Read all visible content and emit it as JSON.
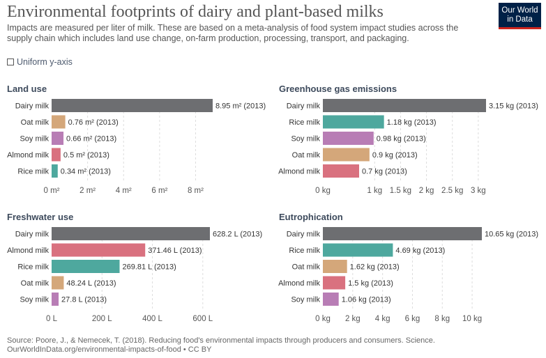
{
  "header": {
    "title": "Environmental footprints of dairy and plant-based milks",
    "subtitle": "Impacts are measured per liter of milk. These are based on a meta-analysis of food system impact studies across the supply chain which includes land use change, on-farm production, processing, transport, and packaging.",
    "logo_line1": "Our World",
    "logo_line2": "in Data",
    "logo_color": "#002147",
    "logo_accent": "#ce261e"
  },
  "controls": {
    "uniform_y_label": "Uniform y-axis",
    "uniform_y_checked": false
  },
  "footer": {
    "source": "Source: Poore, J., & Nemecek, T. (2018). Reducing food's environmental impacts through producers and consumers. Science.",
    "url": "OurWorldInData.org/environmental-impacts-of-food • CC BY"
  },
  "colors": {
    "Dairy milk": "#6d6e71",
    "Oat milk": "#d4a77a",
    "Soy milk": "#b87db5",
    "Almond milk": "#d9717f",
    "Rice milk": "#4ea89e"
  },
  "chart_data": [
    {
      "type": "bar",
      "title": "Land use",
      "categories": [
        "Dairy milk",
        "Oat milk",
        "Soy milk",
        "Almond milk",
        "Rice milk"
      ],
      "values": [
        8.95,
        0.76,
        0.66,
        0.5,
        0.34
      ],
      "labels": [
        "8.95 m² (2013)",
        "0.76 m² (2013)",
        "0.66 m² (2013)",
        "0.5 m² (2013)",
        "0.34 m² (2013)"
      ],
      "xlim": [
        0,
        8.95
      ],
      "ticks": [
        0,
        2,
        4,
        6,
        8
      ],
      "tick_labels": [
        "0 m²",
        "2 m²",
        "4 m²",
        "6 m²",
        "8 m²"
      ]
    },
    {
      "type": "bar",
      "title": "Greenhouse gas emissions",
      "categories": [
        "Dairy milk",
        "Rice milk",
        "Soy milk",
        "Oat milk",
        "Almond milk"
      ],
      "values": [
        3.15,
        1.18,
        0.98,
        0.9,
        0.7
      ],
      "labels": [
        "3.15 kg (2013)",
        "1.18 kg (2013)",
        "0.98 kg (2013)",
        "0.9 kg (2013)",
        "0.7 kg (2013)"
      ],
      "xlim": [
        0,
        3.15
      ],
      "ticks": [
        0,
        1,
        1.5,
        2,
        2.5,
        3
      ],
      "tick_labels": [
        "0 kg",
        "1 kg",
        "1.5 kg",
        "2 kg",
        "2.5 kg",
        "3 kg"
      ]
    },
    {
      "type": "bar",
      "title": "Freshwater use",
      "categories": [
        "Dairy milk",
        "Almond milk",
        "Rice milk",
        "Oat milk",
        "Soy milk"
      ],
      "values": [
        628.2,
        371.46,
        269.81,
        48.24,
        27.8
      ],
      "labels": [
        "628.2 L (2013)",
        "371.46 L (2013)",
        "269.81 L (2013)",
        "48.24 L (2013)",
        "27.8 L (2013)"
      ],
      "xlim": [
        0,
        628.2
      ],
      "ticks": [
        0,
        200,
        400,
        600
      ],
      "tick_labels": [
        "0 L",
        "200 L",
        "400 L",
        "600 L"
      ]
    },
    {
      "type": "bar",
      "title": "Eutrophication",
      "categories": [
        "Dairy milk",
        "Rice milk",
        "Oat milk",
        "Almond milk",
        "Soy milk"
      ],
      "values": [
        10.65,
        4.69,
        1.62,
        1.5,
        1.06
      ],
      "labels": [
        "10.65 kg (2013)",
        "4.69 kg (2013)",
        "1.62 kg (2013)",
        "1.5 kg (2013)",
        "1.06 kg (2013)"
      ],
      "xlim": [
        0,
        10.65
      ],
      "ticks": [
        0,
        2,
        4,
        6,
        8,
        10
      ],
      "tick_labels": [
        "0 kg",
        "2 kg",
        "4 kg",
        "6 kg",
        "8 kg",
        "10 kg"
      ]
    }
  ]
}
